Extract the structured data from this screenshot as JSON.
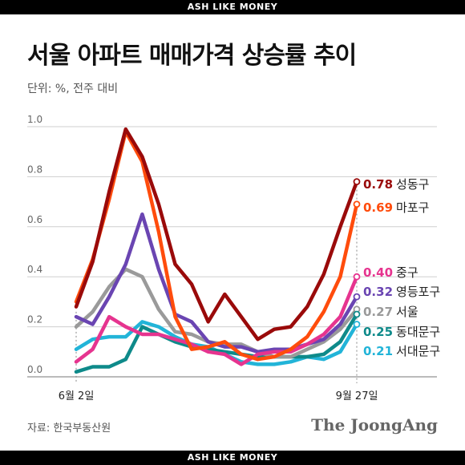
{
  "banner_top": "ASH LIKE MONEY",
  "banner_bottom": "ASH LIKE MONEY",
  "title": "서울 아파트 매매가격 상승률 추이",
  "unit": "단위: %, 전주 대비",
  "source": "자료: 한국부동산원",
  "brand": "The JoongAng",
  "chart_data": {
    "type": "line",
    "title": "서울 아파트 매매가격 상승률 추이",
    "ylabel": "",
    "ylim": [
      0,
      1.0
    ],
    "y_ticks": [
      "0.0",
      "0.2",
      "0.4",
      "0.6",
      "0.8",
      "1.0"
    ],
    "x_tick_labels": [
      "6월 2일",
      "9월 27일"
    ],
    "grid": true,
    "x": [
      "6/2",
      "6/9",
      "6/16",
      "6/23",
      "6/30",
      "7/7",
      "7/14",
      "7/21",
      "7/28",
      "8/4",
      "8/11",
      "8/18",
      "8/25",
      "9/1",
      "9/8",
      "9/15",
      "9/22",
      "9/27"
    ],
    "series": [
      {
        "name": "성동구",
        "value_label": "0.78",
        "color": "#9a0a0a",
        "values": [
          0.28,
          0.46,
          0.74,
          0.99,
          0.88,
          0.69,
          0.45,
          0.37,
          0.22,
          0.33,
          0.24,
          0.15,
          0.19,
          0.2,
          0.28,
          0.41,
          0.6,
          0.78
        ]
      },
      {
        "name": "마포구",
        "value_label": "0.69",
        "color": "#ff4c0c",
        "values": [
          0.3,
          0.47,
          0.71,
          0.98,
          0.86,
          0.58,
          0.24,
          0.11,
          0.12,
          0.14,
          0.09,
          0.07,
          0.08,
          0.11,
          0.16,
          0.26,
          0.4,
          0.69
        ]
      },
      {
        "name": "중구",
        "value_label": "0.40",
        "color": "#e6348f",
        "values": [
          0.06,
          0.11,
          0.24,
          0.2,
          0.17,
          0.17,
          0.15,
          0.13,
          0.1,
          0.09,
          0.05,
          0.09,
          0.1,
          0.1,
          0.13,
          0.17,
          0.24,
          0.4
        ]
      },
      {
        "name": "영등포구",
        "value_label": "0.32",
        "color": "#6a45b2",
        "values": [
          0.24,
          0.21,
          0.32,
          0.45,
          0.65,
          0.43,
          0.25,
          0.22,
          0.14,
          0.12,
          0.12,
          0.1,
          0.11,
          0.11,
          0.13,
          0.15,
          0.21,
          0.32
        ]
      },
      {
        "name": "서울",
        "value_label": "0.27",
        "color": "#9a9a9a",
        "values": [
          0.2,
          0.26,
          0.36,
          0.43,
          0.4,
          0.27,
          0.18,
          0.17,
          0.14,
          0.13,
          0.13,
          0.1,
          0.08,
          0.08,
          0.11,
          0.14,
          0.19,
          0.27
        ]
      },
      {
        "name": "동대문구",
        "value_label": "0.25",
        "color": "#0e8a8a",
        "values": [
          0.02,
          0.04,
          0.04,
          0.07,
          0.2,
          0.17,
          0.14,
          0.12,
          0.11,
          0.1,
          0.09,
          0.08,
          0.08,
          0.08,
          0.08,
          0.09,
          0.14,
          0.25
        ]
      },
      {
        "name": "서대문구",
        "value_label": "0.21",
        "color": "#22b4d8",
        "values": [
          0.11,
          0.15,
          0.16,
          0.16,
          0.22,
          0.2,
          0.16,
          0.13,
          0.12,
          0.09,
          0.06,
          0.05,
          0.05,
          0.06,
          0.08,
          0.07,
          0.1,
          0.21
        ]
      }
    ]
  }
}
